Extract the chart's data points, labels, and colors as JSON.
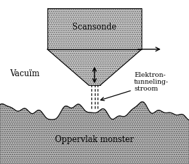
{
  "bg_color": "#ffffff",
  "label_scansonde": "Scansonde",
  "label_vacuum": "Vacuïm",
  "label_oppervlak": "Oppervlak monster",
  "label_elektron": "Elektron-\ntunneling-\nstroom",
  "figsize": [
    2.75,
    2.39
  ],
  "dpi": 100,
  "probe_fc": "#d8d8d8",
  "probe_ec": "#555555",
  "surface_fc": "#c8c8c8",
  "surface_ec": "#444444"
}
